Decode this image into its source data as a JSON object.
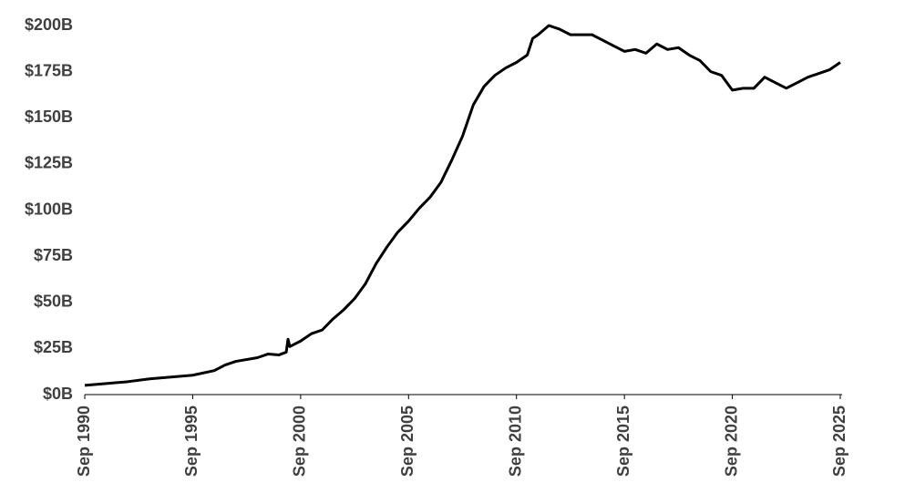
{
  "chart_data": {
    "type": "line",
    "x": [
      "1990-09",
      "1991-09",
      "1992-09",
      "1993-09",
      "1994-09",
      "1995-09",
      "1996-09",
      "1997-03",
      "1997-09",
      "1998-09",
      "1999-03",
      "1999-09",
      "2000-01",
      "2000-02",
      "2000-03",
      "2000-09",
      "2001-03",
      "2001-09",
      "2002-03",
      "2002-09",
      "2003-03",
      "2003-09",
      "2004-03",
      "2004-09",
      "2005-03",
      "2005-09",
      "2006-03",
      "2006-09",
      "2007-03",
      "2007-09",
      "2008-03",
      "2008-09",
      "2009-03",
      "2009-09",
      "2010-03",
      "2010-09",
      "2011-03",
      "2011-06",
      "2011-09",
      "2012-03",
      "2012-09",
      "2013-03",
      "2013-09",
      "2014-03",
      "2014-09",
      "2015-03",
      "2015-09",
      "2016-03",
      "2016-09",
      "2017-03",
      "2017-09",
      "2018-03",
      "2018-09",
      "2019-03",
      "2019-09",
      "2020-03",
      "2020-09",
      "2021-03",
      "2021-09",
      "2022-03",
      "2022-09",
      "2023-03",
      "2023-09",
      "2024-03",
      "2024-09",
      "2025-03",
      "2025-09"
    ],
    "values": [
      5,
      6,
      7,
      8.5,
      9.5,
      10.5,
      13,
      16,
      18,
      20,
      22,
      21.5,
      23,
      30,
      26,
      29,
      33,
      35,
      41,
      46,
      52,
      60,
      71,
      80,
      88,
      94,
      101,
      107,
      115,
      127,
      140,
      157,
      167,
      173,
      177,
      180,
      184,
      193,
      195,
      200,
      198,
      195,
      195,
      195,
      192,
      189,
      186,
      187,
      185,
      190,
      187,
      188,
      184,
      181,
      175,
      173,
      165,
      166,
      166,
      172,
      169,
      166,
      169,
      172,
      174,
      176,
      180
    ],
    "color": "#000000",
    "xlim": [
      "1990-09",
      "2025-09"
    ],
    "xticks": [
      {
        "value": "1990-09",
        "label": "Sep 1990"
      },
      {
        "value": "1995-09",
        "label": "Sep 1995"
      },
      {
        "value": "2000-09",
        "label": "Sep 2000"
      },
      {
        "value": "2005-09",
        "label": "Sep 2005"
      },
      {
        "value": "2010-09",
        "label": "Sep 2010"
      },
      {
        "value": "2015-09",
        "label": "Sep 2015"
      },
      {
        "value": "2020-09",
        "label": "Sep 2020"
      },
      {
        "value": "2025-09",
        "label": "Sep 2025"
      }
    ],
    "ylim": [
      0,
      200
    ],
    "yticks": [
      {
        "value": 0,
        "label": "$0B"
      },
      {
        "value": 25,
        "label": "$25B"
      },
      {
        "value": 50,
        "label": "$50B"
      },
      {
        "value": 75,
        "label": "$75B"
      },
      {
        "value": 100,
        "label": "$100B"
      },
      {
        "value": 125,
        "label": "$125B"
      },
      {
        "value": 150,
        "label": "$150B"
      },
      {
        "value": 175,
        "label": "$175B"
      },
      {
        "value": 200,
        "label": "$200B"
      }
    ],
    "grid": false
  }
}
